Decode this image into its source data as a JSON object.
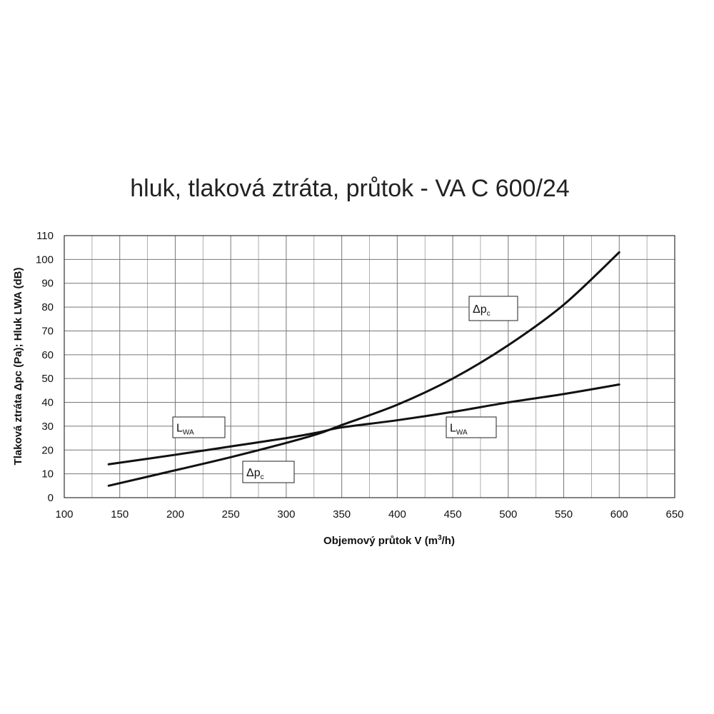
{
  "chart_data": {
    "type": "line",
    "title": "hluk, tlaková ztráta, průtok - VA C 600/24",
    "xlabel": "Objemový průtok V (m³/h)",
    "ylabel": "Tlaková ztráta Δpc (Pa); Hluk LWA (dB)",
    "xlim": [
      100,
      650
    ],
    "ylim": [
      0,
      110
    ],
    "xticks": [
      100,
      150,
      200,
      250,
      300,
      350,
      400,
      450,
      500,
      550,
      600,
      650
    ],
    "yticks": [
      0,
      10,
      20,
      30,
      40,
      50,
      60,
      70,
      80,
      90,
      100,
      110
    ],
    "grid": true,
    "series": [
      {
        "name": "LWA",
        "x": [
          140,
          200,
          250,
          300,
          330,
          350,
          400,
          450,
          500,
          550,
          600
        ],
        "y": [
          14,
          18,
          21.5,
          25,
          27.5,
          29.5,
          32.5,
          36,
          40,
          43.5,
          47.5
        ]
      },
      {
        "name": "Δpc",
        "x": [
          140,
          200,
          250,
          300,
          330,
          350,
          400,
          450,
          500,
          550,
          600
        ],
        "y": [
          5,
          11.5,
          17,
          23,
          27,
          30.5,
          39,
          50,
          64,
          81,
          103
        ]
      }
    ],
    "annotations": [
      {
        "main": "Δp",
        "sub": "c"
      },
      {
        "main": "L",
        "sub": "WA"
      },
      {
        "main": "L",
        "sub": "WA"
      },
      {
        "main": "Δp",
        "sub": "c"
      }
    ]
  }
}
